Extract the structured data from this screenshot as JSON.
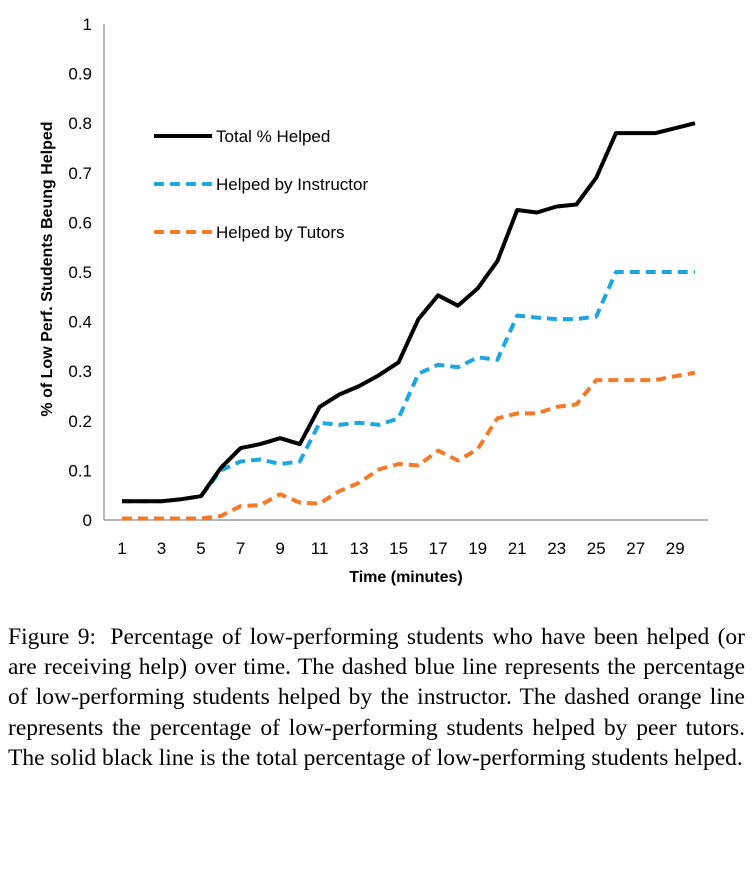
{
  "chart_data": {
    "type": "line",
    "ylabel": "% of Low Perf. Students Beung Helped",
    "xlabel": "Time (minutes)",
    "ylim": [
      0,
      1
    ],
    "xlim": [
      1,
      30
    ],
    "yticks": [
      "0",
      "0.1",
      "0.2",
      "0.3",
      "0.4",
      "0.5",
      "0.6",
      "0.7",
      "0.8",
      "0.9",
      "1"
    ],
    "xticks": [
      "1",
      "3",
      "5",
      "7",
      "9",
      "11",
      "13",
      "15",
      "17",
      "19",
      "21",
      "23",
      "25",
      "27",
      "29"
    ],
    "legend_position": "top-left",
    "x": [
      1,
      2,
      3,
      4,
      5,
      6,
      7,
      8,
      9,
      10,
      11,
      12,
      13,
      14,
      15,
      16,
      17,
      18,
      19,
      20,
      21,
      22,
      23,
      24,
      25,
      26,
      27,
      28,
      29,
      30
    ],
    "series": [
      {
        "name": "Total % Helped",
        "color": "#000000",
        "style": "solid",
        "values": [
          0.038,
          0.038,
          0.038,
          0.042,
          0.048,
          0.105,
          0.145,
          0.153,
          0.165,
          0.153,
          0.228,
          0.253,
          0.27,
          0.292,
          0.318,
          0.405,
          0.453,
          0.432,
          0.467,
          0.522,
          0.625,
          0.62,
          0.632,
          0.636,
          0.69,
          0.78,
          0.78,
          0.78,
          0.79,
          0.8
        ]
      },
      {
        "name": "Helped by Instructor",
        "color": "#1ea6e0",
        "style": "dashed",
        "values": [
          0.038,
          0.038,
          0.038,
          0.042,
          0.048,
          0.1,
          0.118,
          0.122,
          0.113,
          0.118,
          0.196,
          0.192,
          0.196,
          0.192,
          0.205,
          0.295,
          0.313,
          0.308,
          0.328,
          0.323,
          0.412,
          0.408,
          0.405,
          0.405,
          0.41,
          0.5,
          0.5,
          0.5,
          0.5,
          0.5
        ]
      },
      {
        "name": "Helped by Tutors",
        "color": "#f47a2a",
        "style": "dashed",
        "values": [
          0.003,
          0.003,
          0.003,
          0.003,
          0.003,
          0.008,
          0.028,
          0.03,
          0.052,
          0.035,
          0.033,
          0.058,
          0.075,
          0.102,
          0.113,
          0.11,
          0.14,
          0.12,
          0.143,
          0.205,
          0.215,
          0.215,
          0.228,
          0.233,
          0.282,
          0.282,
          0.282,
          0.282,
          0.29,
          0.297
        ]
      }
    ]
  },
  "caption": {
    "label": "Figure 9:",
    "text": "Percentage of low-performing students who have been helped (or are receiving help) over time. The dashed blue line represents the percent­age of low-performing students helped by the in­structor. The dashed orange line represents the per­centage of low-performing students helped by peer tutors. The solid black line is the total percentage of low-performing students helped."
  }
}
